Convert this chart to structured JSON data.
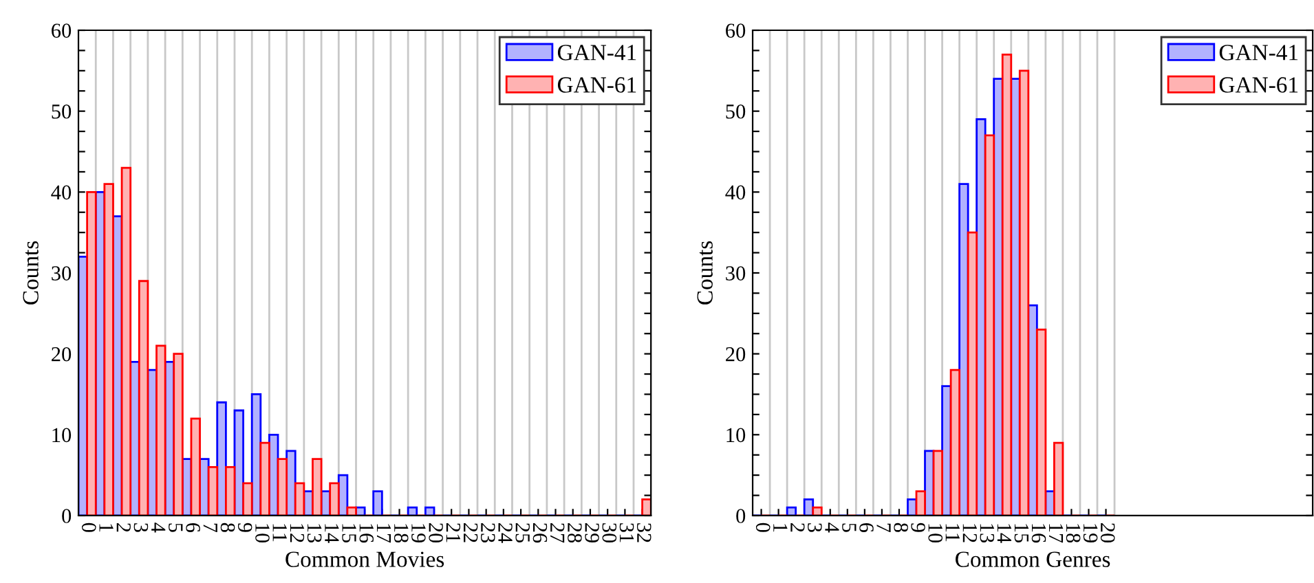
{
  "chart_data": [
    {
      "type": "bar",
      "xlabel": "Common Movies",
      "ylabel": "Counts",
      "x": [
        0,
        1,
        2,
        3,
        4,
        5,
        6,
        7,
        8,
        9,
        10,
        11,
        12,
        13,
        14,
        15,
        16,
        17,
        18,
        19,
        20,
        21,
        22,
        23,
        24,
        25,
        26,
        27,
        28,
        29,
        30,
        31,
        32
      ],
      "series": [
        {
          "name": "GAN-41",
          "color": "#0000ff",
          "values": [
            32,
            40,
            37,
            19,
            18,
            19,
            7,
            7,
            14,
            13,
            15,
            10,
            8,
            3,
            3,
            5,
            1,
            3,
            0,
            1,
            1,
            0,
            0,
            0,
            0,
            0,
            0,
            0,
            0,
            0,
            0,
            0,
            0
          ]
        },
        {
          "name": "GAN-61",
          "color": "#ff0000",
          "values": [
            40,
            41,
            43,
            29,
            21,
            20,
            12,
            6,
            6,
            4,
            9,
            7,
            4,
            7,
            4,
            1,
            0,
            0,
            0,
            0,
            0,
            0,
            0,
            0,
            0,
            0,
            0,
            0,
            0,
            0,
            0,
            0,
            2
          ]
        }
      ],
      "xlim": [
        -0.5,
        32.5
      ],
      "xticks": [
        0,
        1,
        2,
        3,
        4,
        5,
        6,
        7,
        8,
        9,
        10,
        11,
        12,
        13,
        14,
        15,
        16,
        17,
        18,
        19,
        20,
        21,
        22,
        23,
        24,
        25,
        26,
        27,
        28,
        29,
        30,
        31,
        32
      ],
      "ylim": [
        0,
        60
      ],
      "yticks": [
        0,
        {
          "value": 2.5,
          "label": null
        },
        {
          "value": 5,
          "label": null
        },
        {
          "value": 7.5,
          "label": null
        },
        10,
        {
          "value": 12.5,
          "label": null
        },
        {
          "value": 15,
          "label": null
        },
        {
          "value": 17.5,
          "label": null
        },
        20,
        {
          "value": 22.5,
          "label": null
        },
        {
          "value": 25,
          "label": null
        },
        {
          "value": 27.5,
          "label": null
        },
        30,
        {
          "value": 32.5,
          "label": null
        },
        {
          "value": 35,
          "label": null
        },
        {
          "value": 37.5,
          "label": null
        },
        40,
        {
          "value": 42.5,
          "label": null
        },
        {
          "value": 45,
          "label": null
        },
        {
          "value": 47.5,
          "label": null
        },
        50,
        {
          "value": 52.5,
          "label": null
        },
        {
          "value": 55,
          "label": null
        },
        {
          "value": 57.5,
          "label": null
        },
        60
      ],
      "grid": "x",
      "legend": "top right"
    },
    {
      "type": "bar",
      "xlabel": "Common Genres",
      "ylabel": "Counts",
      "x": [
        0,
        1,
        2,
        3,
        4,
        5,
        6,
        7,
        8,
        9,
        10,
        11,
        12,
        13,
        14,
        15,
        16,
        17,
        18,
        19,
        20
      ],
      "series": [
        {
          "name": "GAN-41",
          "color": "#0000ff",
          "values": [
            0,
            0,
            1,
            2,
            0,
            0,
            0,
            0,
            0,
            2,
            8,
            16,
            41,
            49,
            54,
            54,
            26,
            3,
            0,
            0,
            0
          ]
        },
        {
          "name": "GAN-61",
          "color": "#ff0000",
          "values": [
            0,
            0,
            0,
            1,
            0,
            0,
            0,
            0,
            0,
            3,
            8,
            18,
            35,
            47,
            57,
            55,
            23,
            9,
            0,
            0,
            0
          ]
        }
      ],
      "xlim": [
        -0.5,
        32
      ],
      "xticks": [
        0,
        1,
        2,
        3,
        4,
        5,
        6,
        7,
        8,
        9,
        10,
        11,
        12,
        13,
        14,
        15,
        16,
        17,
        18,
        19,
        20
      ],
      "ylim": [
        0,
        60
      ],
      "yticks": [
        0,
        {
          "value": 2.5,
          "label": null
        },
        {
          "value": 5,
          "label": null
        },
        {
          "value": 7.5,
          "label": null
        },
        10,
        {
          "value": 12.5,
          "label": null
        },
        {
          "value": 15,
          "label": null
        },
        {
          "value": 17.5,
          "label": null
        },
        20,
        {
          "value": 22.5,
          "label": null
        },
        {
          "value": 25,
          "label": null
        },
        {
          "value": 27.5,
          "label": null
        },
        30,
        {
          "value": 32.5,
          "label": null
        },
        {
          "value": 35,
          "label": null
        },
        {
          "value": 37.5,
          "label": null
        },
        40,
        {
          "value": 42.5,
          "label": null
        },
        {
          "value": 45,
          "label": null
        },
        {
          "value": 47.5,
          "label": null
        },
        50,
        {
          "value": 52.5,
          "label": null
        },
        {
          "value": 55,
          "label": null
        },
        {
          "value": 57.5,
          "label": null
        },
        60
      ],
      "grid": "x",
      "legend": "top right"
    }
  ]
}
